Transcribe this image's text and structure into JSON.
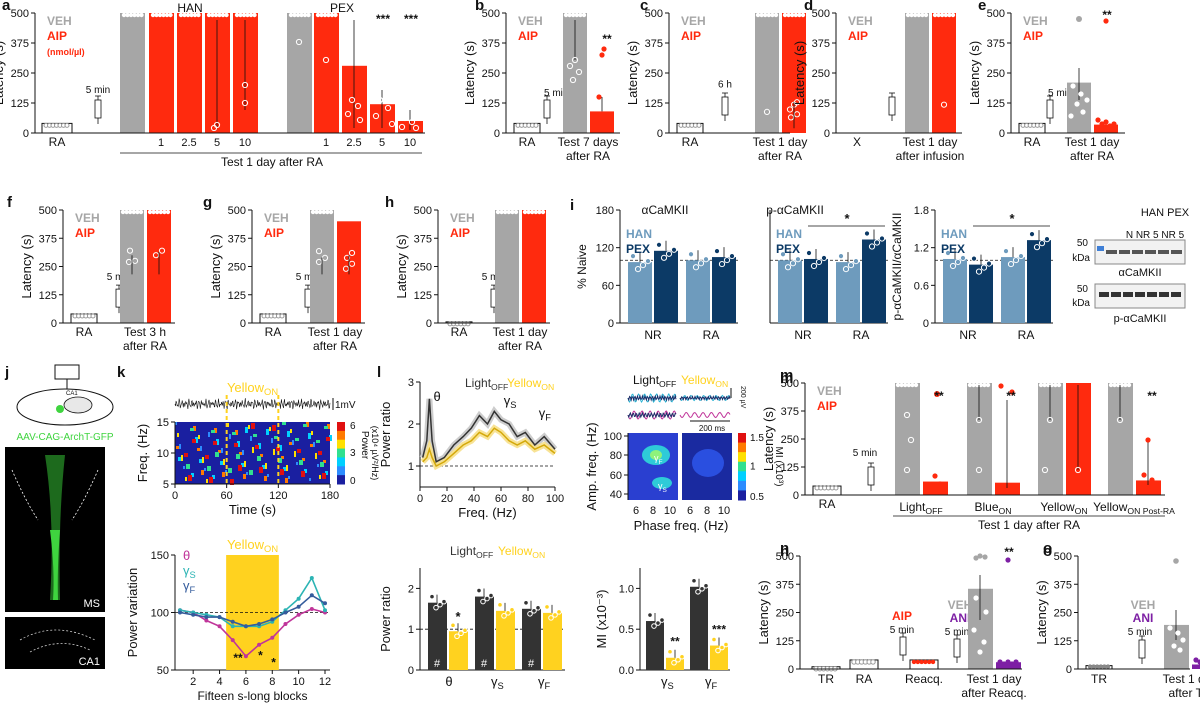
{
  "colors": {
    "veh": "#a6a6a6",
    "aip": "#ff2a0e",
    "han": "#6e9bbd",
    "pex": "#0c3a66",
    "yellow": "#ffd21f",
    "dark": "#333333",
    "theta": "#c0359a",
    "gamma_s": "#2cb4b4",
    "gamma_f": "#345c9c",
    "ani": "#7d1fa4",
    "ms_green": "#3fd43f"
  },
  "labels": {
    "latency": "Latency (s)",
    "veh": "VEH",
    "aip": "AIP",
    "ani": "ANI",
    "nmol": "(nmol/µl)",
    "han": "HAN",
    "pex": "PEX",
    "five_min": "5 min",
    "six_h": "6 h",
    "test_1day_ra": "Test 1 day after RA",
    "test_1day": "Test 1 day",
    "after_ra": "after RA",
    "test_7days": "Test 7 days",
    "after_infusion": "after infusion",
    "test_3h": "Test 3 h",
    "after_reacq": "after Reacq.",
    "after_tr": "after TR",
    "pct_naive": "% Naive",
    "acamkii": "αCaMKII",
    "p_acamkii": "p-αCaMKII",
    "ratio": "p-αCaMKII/αCaMKII",
    "blot_han_pex": "HAN  PEX",
    "blot_lanes": "N  NR 5  NR 5",
    "kda": "kDa",
    "fifty": "50",
    "aav": "AAV-CAG-ArchT-GFP",
    "ms": "MS",
    "ca1": "CA1",
    "yellow_on": "Yellow",
    "on_sub": "ON",
    "off_sub": "OFF",
    "light": "Light",
    "blue": "Blue",
    "post_ra": "Post-RA",
    "one_mv": "1mV",
    "two_hundred_uv": "200 µV",
    "two_hundred_ms": "200 ms",
    "freq_hz": "Freq. (Hz)",
    "time_s": "Time (s)",
    "power_cb": "Power",
    "power_cb_unit": "(x10⁴ µV²/Hz)",
    "power_ratio": "Power ratio",
    "power_variation": "Power variation",
    "fifteen_blocks": "Fifteen s-long blocks",
    "amp_freq": "Amp. freq. (Hz)",
    "phase_freq": "Phase freq. (Hz)",
    "mi_cb": "MI (x10³)",
    "mi_axis": "MI (x10⁻³)",
    "theta": "θ",
    "gamma": "γ",
    "sub_s": "S",
    "sub_f": "F",
    "hash": "#",
    "ra": "RA",
    "nr": "NR",
    "x": "X",
    "tr": "TR",
    "reacq": "Reacq."
  },
  "panels": [
    "a",
    "b",
    "c",
    "d",
    "e",
    "f",
    "g",
    "h",
    "i",
    "j",
    "k",
    "l",
    "m",
    "n",
    "o"
  ],
  "chart_data": [
    {
      "panel": "a",
      "type": "bar",
      "ylabel": "Latency (s)",
      "ylim": [
        0,
        500
      ],
      "yticks": [
        0,
        125,
        250,
        375,
        500
      ],
      "groups": [
        {
          "name": "",
          "categories": [
            "RA"
          ],
          "values": [
            40
          ]
        },
        {
          "name": "HAN",
          "categories": [
            "VEH",
            "1",
            "2.5",
            "5",
            "10"
          ],
          "values": [
            500,
            500,
            500,
            500,
            500
          ]
        },
        {
          "name": "PEX",
          "categories": [
            "VEH",
            "1",
            "2.5",
            "5",
            "10"
          ],
          "values": [
            500,
            500,
            280,
            120,
            50
          ]
        }
      ],
      "significance": [
        "***",
        "***"
      ],
      "xlabel": "Test 1 day after RA"
    },
    {
      "panel": "b",
      "type": "bar",
      "ylabel": "Latency (s)",
      "ylim": [
        0,
        500
      ],
      "categories": [
        "RA",
        "Test 7 days after RA (VEH)",
        "Test 7 days after RA (AIP)"
      ],
      "values": [
        40,
        500,
        90
      ],
      "significance": [
        "**"
      ]
    },
    {
      "panel": "c",
      "type": "bar",
      "ylabel": "Latency (s)",
      "ylim": [
        0,
        500
      ],
      "categories": [
        "RA",
        "Test 1 day after RA (VEH)",
        "Test 1 day after RA (AIP)"
      ],
      "values": [
        40,
        500,
        500
      ]
    },
    {
      "panel": "d",
      "type": "bar",
      "ylabel": "Latency (s)",
      "ylim": [
        0,
        500
      ],
      "categories": [
        "X",
        "Test 1 day after infusion (VEH)",
        "Test 1 day after infusion (AIP)"
      ],
      "values": [
        0,
        500,
        500
      ]
    },
    {
      "panel": "e",
      "type": "bar",
      "ylabel": "Latency (s)",
      "ylim": [
        0,
        500
      ],
      "categories": [
        "RA",
        "Test 1 day after RA (VEH)",
        "Test 1 day after RA (AIP)"
      ],
      "values": [
        40,
        210,
        35
      ],
      "significance": [
        "**"
      ]
    },
    {
      "panel": "f",
      "type": "bar",
      "ylabel": "Latency (s)",
      "ylim": [
        0,
        500
      ],
      "categories": [
        "RA",
        "Test 3 h after RA (VEH)",
        "Test 3 h after RA (AIP)"
      ],
      "values": [
        40,
        500,
        500
      ]
    },
    {
      "panel": "g",
      "type": "bar",
      "ylabel": "Latency (s)",
      "ylim": [
        0,
        500
      ],
      "categories": [
        "RA",
        "Test 1 day after RA (VEH)",
        "Test 1 day after RA (AIP)"
      ],
      "values": [
        40,
        500,
        450
      ]
    },
    {
      "panel": "h",
      "type": "bar",
      "ylabel": "Latency (s)",
      "ylim": [
        0,
        500
      ],
      "categories": [
        "RA",
        "Test 1 day after RA (VEH)",
        "Test 1 day after RA (AIP)"
      ],
      "values": [
        5,
        500,
        500
      ]
    },
    {
      "panel": "i",
      "type": "bar",
      "subplots": [
        {
          "title": "αCaMKII",
          "ylabel": "% Naive",
          "ylim": [
            0,
            180
          ],
          "categories": [
            "NR",
            "RA"
          ],
          "series": [
            {
              "name": "HAN",
              "values": [
                97,
                100
              ]
            },
            {
              "name": "PEX",
              "values": [
                115,
                105
              ]
            }
          ]
        },
        {
          "title": "p-αCaMKII",
          "ylim": [
            0,
            180
          ],
          "categories": [
            "NR",
            "RA"
          ],
          "series": [
            {
              "name": "HAN",
              "values": [
                100,
                97
              ]
            },
            {
              "name": "PEX",
              "values": [
                102,
                133
              ]
            }
          ],
          "significance": [
            "*"
          ]
        },
        {
          "ylabel": "p-αCaMKII/αCaMKII",
          "ylim": [
            0,
            1.8
          ],
          "categories": [
            "NR",
            "RA"
          ],
          "series": [
            {
              "name": "HAN",
              "values": [
                1.02,
                1.05
              ]
            },
            {
              "name": "PEX",
              "values": [
                0.93,
                1.32
              ]
            }
          ],
          "significance": [
            "*"
          ]
        }
      ]
    },
    {
      "panel": "k",
      "type": "line",
      "xlabel": "Fifteen s-long blocks",
      "ylabel": "Power variation",
      "ylim": [
        50,
        150
      ],
      "x": [
        1,
        2,
        3,
        4,
        5,
        6,
        7,
        8,
        9,
        10,
        11,
        12
      ],
      "series": [
        {
          "name": "θ",
          "values": [
            102,
            100,
            93,
            88,
            76,
            62,
            72,
            78,
            90,
            98,
            103,
            100
          ]
        },
        {
          "name": "γS",
          "values": [
            102,
            100,
            98,
            96,
            88,
            88,
            88,
            92,
            102,
            112,
            130,
            102
          ]
        },
        {
          "name": "γF",
          "values": [
            100,
            98,
            96,
            96,
            92,
            88,
            90,
            94,
            100,
            105,
            115,
            108
          ]
        }
      ],
      "significance": [
        "**",
        "*",
        "*"
      ]
    },
    {
      "panel": "l",
      "type": "line",
      "xlabel": "Freq. (Hz)",
      "ylabel": "Power ratio",
      "xlim": [
        0,
        100
      ],
      "ylim": [
        0.5,
        3
      ],
      "series": [
        {
          "name": "LightOFF"
        },
        {
          "name": "YellowON"
        }
      ]
    },
    {
      "panel": "l2",
      "type": "bar",
      "ylabel": "Power ratio",
      "ylim": [
        0,
        2.5
      ],
      "categories": [
        "θ",
        "γS",
        "γF"
      ],
      "series": [
        {
          "name": "LightOFF",
          "values": [
            1.65,
            1.8,
            1.5
          ]
        },
        {
          "name": "YellowON",
          "values": [
            0.95,
            1.45,
            1.4
          ]
        }
      ],
      "significance": [
        "*"
      ]
    },
    {
      "panel": "l3",
      "type": "bar",
      "ylabel": "MI (x10⁻³)",
      "ylim": [
        0,
        1.25
      ],
      "categories": [
        "γS",
        "γF"
      ],
      "series": [
        {
          "name": "LightOFF",
          "values": [
            0.6,
            1.02
          ]
        },
        {
          "name": "YellowON",
          "values": [
            0.15,
            0.3
          ]
        }
      ],
      "significance": [
        "**",
        "***"
      ]
    },
    {
      "panel": "m",
      "type": "bar",
      "ylabel": "Latency (s)",
      "ylim": [
        0,
        500
      ],
      "categories": [
        "RA",
        "LightOFF",
        "BlueON",
        "YellowON",
        "YellowON Post-RA"
      ],
      "series": [
        {
          "name": "VEH",
          "values": [
            40,
            500,
            500,
            500,
            500
          ]
        },
        {
          "name": "AIP",
          "values": [
            null,
            60,
            55,
            500,
            65
          ]
        }
      ],
      "significance": [
        "**",
        "**",
        "**"
      ],
      "xlabel": "Test 1 day after RA"
    },
    {
      "panel": "n",
      "type": "bar",
      "ylabel": "Latency (s)",
      "ylim": [
        0,
        500
      ],
      "categories": [
        "TR",
        "RA",
        "Reacq.",
        "Test 1 day after Reacq. (VEH)",
        "Test 1 day after Reacq. (ANI)"
      ],
      "values": [
        10,
        40,
        40,
        355,
        30
      ],
      "significance": [
        "**"
      ]
    },
    {
      "panel": "o",
      "type": "bar",
      "ylabel": "Latency (s)",
      "ylim": [
        0,
        500
      ],
      "categories": [
        "TR",
        "Test 1 day after TR (VEH)",
        "Test 1 day after TR (ANI)"
      ],
      "values": [
        15,
        195,
        20
      ],
      "significance": [
        "***"
      ]
    }
  ]
}
